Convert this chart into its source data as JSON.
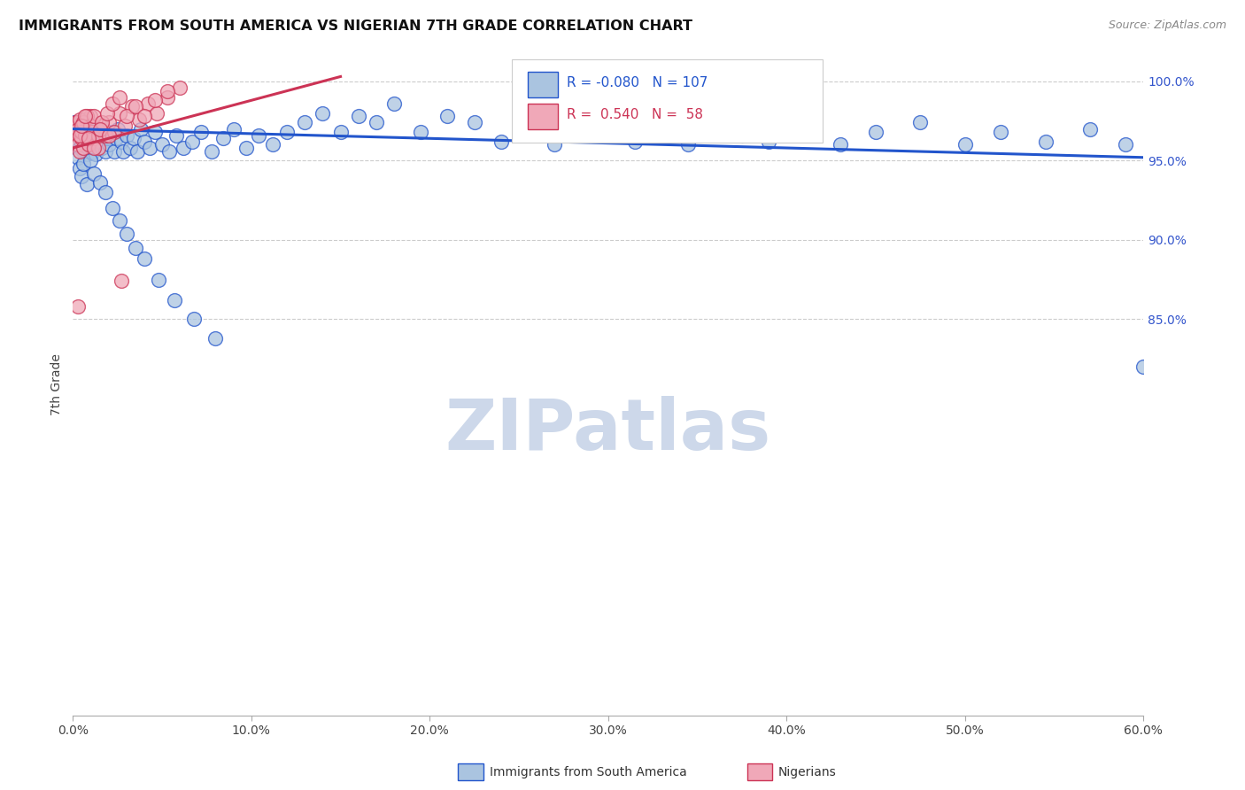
{
  "title": "IMMIGRANTS FROM SOUTH AMERICA VS NIGERIAN 7TH GRADE CORRELATION CHART",
  "source": "Source: ZipAtlas.com",
  "ylabel": "7th Grade",
  "xlim": [
    0.0,
    0.6
  ],
  "ylim": [
    0.6,
    1.018
  ],
  "xtick_labels": [
    "0.0%",
    "10.0%",
    "20.0%",
    "30.0%",
    "40.0%",
    "50.0%",
    "60.0%"
  ],
  "xtick_values": [
    0.0,
    0.1,
    0.2,
    0.3,
    0.4,
    0.5,
    0.6
  ],
  "ytick_labels": [
    "85.0%",
    "90.0%",
    "95.0%",
    "100.0%"
  ],
  "ytick_values": [
    0.85,
    0.9,
    0.95,
    1.0
  ],
  "blue_color": "#aac4e0",
  "pink_color": "#f0a8b8",
  "blue_line_color": "#2255cc",
  "pink_line_color": "#cc3355",
  "legend_text_blue_r": "-0.080",
  "legend_text_blue_n": "107",
  "legend_text_pink_r": "0.540",
  "legend_text_pink_n": "58",
  "watermark": "ZIPatlas",
  "watermark_color": "#cdd8ea",
  "blue_scatter_x": [
    0.001,
    0.002,
    0.002,
    0.003,
    0.003,
    0.004,
    0.004,
    0.005,
    0.005,
    0.005,
    0.006,
    0.006,
    0.007,
    0.007,
    0.008,
    0.008,
    0.009,
    0.009,
    0.01,
    0.01,
    0.011,
    0.011,
    0.012,
    0.013,
    0.013,
    0.014,
    0.015,
    0.016,
    0.017,
    0.018,
    0.019,
    0.02,
    0.022,
    0.023,
    0.024,
    0.025,
    0.027,
    0.028,
    0.03,
    0.032,
    0.034,
    0.036,
    0.038,
    0.04,
    0.043,
    0.046,
    0.05,
    0.054,
    0.058,
    0.062,
    0.067,
    0.072,
    0.078,
    0.084,
    0.09,
    0.097,
    0.104,
    0.112,
    0.12,
    0.13,
    0.14,
    0.15,
    0.16,
    0.17,
    0.18,
    0.195,
    0.21,
    0.225,
    0.24,
    0.255,
    0.27,
    0.285,
    0.3,
    0.315,
    0.33,
    0.345,
    0.36,
    0.375,
    0.39,
    0.41,
    0.43,
    0.45,
    0.475,
    0.5,
    0.52,
    0.545,
    0.57,
    0.59,
    0.6,
    0.003,
    0.004,
    0.005,
    0.006,
    0.008,
    0.01,
    0.012,
    0.015,
    0.018,
    0.022,
    0.026,
    0.03,
    0.035,
    0.04,
    0.048,
    0.057,
    0.068,
    0.08
  ],
  "blue_scatter_y": [
    0.974,
    0.97,
    0.966,
    0.972,
    0.962,
    0.968,
    0.958,
    0.974,
    0.965,
    0.96,
    0.97,
    0.956,
    0.972,
    0.96,
    0.968,
    0.954,
    0.964,
    0.958,
    0.972,
    0.962,
    0.968,
    0.955,
    0.966,
    0.96,
    0.954,
    0.968,
    0.962,
    0.958,
    0.97,
    0.956,
    0.964,
    0.96,
    0.968,
    0.956,
    0.964,
    0.97,
    0.962,
    0.956,
    0.966,
    0.958,
    0.964,
    0.956,
    0.97,
    0.962,
    0.958,
    0.968,
    0.96,
    0.956,
    0.966,
    0.958,
    0.962,
    0.968,
    0.956,
    0.964,
    0.97,
    0.958,
    0.966,
    0.96,
    0.968,
    0.974,
    0.98,
    0.968,
    0.978,
    0.974,
    0.986,
    0.968,
    0.978,
    0.974,
    0.962,
    0.97,
    0.96,
    0.968,
    0.974,
    0.962,
    0.968,
    0.96,
    0.974,
    0.966,
    0.962,
    0.97,
    0.96,
    0.968,
    0.974,
    0.96,
    0.968,
    0.962,
    0.97,
    0.96,
    0.82,
    0.952,
    0.945,
    0.94,
    0.948,
    0.935,
    0.95,
    0.942,
    0.936,
    0.93,
    0.92,
    0.912,
    0.904,
    0.895,
    0.888,
    0.875,
    0.862,
    0.85,
    0.838
  ],
  "pink_scatter_x": [
    0.001,
    0.002,
    0.002,
    0.003,
    0.003,
    0.004,
    0.004,
    0.005,
    0.005,
    0.006,
    0.006,
    0.007,
    0.008,
    0.009,
    0.01,
    0.011,
    0.012,
    0.014,
    0.016,
    0.018,
    0.02,
    0.023,
    0.026,
    0.029,
    0.033,
    0.037,
    0.042,
    0.047,
    0.053,
    0.06,
    0.002,
    0.003,
    0.004,
    0.005,
    0.006,
    0.007,
    0.008,
    0.01,
    0.012,
    0.014,
    0.016,
    0.019,
    0.022,
    0.026,
    0.03,
    0.035,
    0.04,
    0.046,
    0.053,
    0.003,
    0.004,
    0.005,
    0.007,
    0.009,
    0.012,
    0.015,
    0.02,
    0.027
  ],
  "pink_scatter_y": [
    0.972,
    0.968,
    0.974,
    0.966,
    0.96,
    0.972,
    0.956,
    0.968,
    0.964,
    0.972,
    0.958,
    0.976,
    0.964,
    0.96,
    0.978,
    0.968,
    0.964,
    0.958,
    0.972,
    0.966,
    0.974,
    0.968,
    0.98,
    0.972,
    0.984,
    0.976,
    0.986,
    0.98,
    0.99,
    0.996,
    0.974,
    0.97,
    0.976,
    0.968,
    0.974,
    0.966,
    0.978,
    0.972,
    0.978,
    0.966,
    0.974,
    0.98,
    0.986,
    0.99,
    0.978,
    0.984,
    0.978,
    0.988,
    0.994,
    0.858,
    0.966,
    0.972,
    0.978,
    0.964,
    0.958,
    0.97,
    0.966,
    0.874
  ],
  "blue_trend_x": [
    0.0,
    0.6
  ],
  "blue_trend_y": [
    0.97,
    0.952
  ],
  "pink_trend_x": [
    0.0,
    0.15
  ],
  "pink_trend_y": [
    0.958,
    1.003
  ]
}
